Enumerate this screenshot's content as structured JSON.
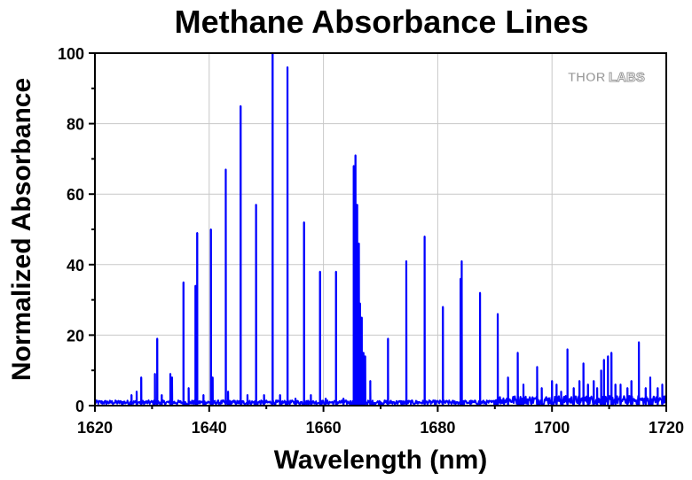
{
  "chart_data": {
    "type": "line",
    "title": "Methane Absorbance Lines",
    "xlabel": "Wavelength (nm)",
    "ylabel": "Normalized Absorbance",
    "xlim": [
      1620,
      1720
    ],
    "ylim": [
      0,
      100
    ],
    "xticks": [
      1620,
      1640,
      1660,
      1680,
      1700,
      1720
    ],
    "yticks": [
      0,
      20,
      40,
      60,
      80,
      100
    ],
    "grid": true,
    "line_color": "#0000ff",
    "baseline_level": 1,
    "series": [
      {
        "peaks": [
          [
            1626.4,
            3
          ],
          [
            1627.3,
            4
          ],
          [
            1628.1,
            8
          ],
          [
            1630.5,
            9
          ],
          [
            1630.9,
            19
          ],
          [
            1631.7,
            3
          ],
          [
            1633.2,
            9
          ],
          [
            1633.5,
            8
          ],
          [
            1635.5,
            35
          ],
          [
            1636.4,
            5
          ],
          [
            1637.6,
            34
          ],
          [
            1637.9,
            49
          ],
          [
            1639.0,
            3
          ],
          [
            1640.3,
            50
          ],
          [
            1640.6,
            8
          ],
          [
            1642.9,
            67
          ],
          [
            1643.3,
            4
          ],
          [
            1645.5,
            85
          ],
          [
            1646.7,
            3
          ],
          [
            1648.2,
            57
          ],
          [
            1649.6,
            3
          ],
          [
            1651.1,
            100
          ],
          [
            1652.4,
            3
          ],
          [
            1653.7,
            96
          ],
          [
            1655.1,
            2
          ],
          [
            1656.6,
            52
          ],
          [
            1657.8,
            3
          ],
          [
            1659.4,
            38
          ],
          [
            1660.4,
            2
          ],
          [
            1662.2,
            38
          ],
          [
            1663.5,
            2
          ],
          [
            1665.3,
            68
          ],
          [
            1665.6,
            71
          ],
          [
            1665.9,
            57
          ],
          [
            1666.2,
            46
          ],
          [
            1666.4,
            29
          ],
          [
            1666.7,
            25
          ],
          [
            1667.0,
            15
          ],
          [
            1667.3,
            14
          ],
          [
            1668.2,
            7
          ],
          [
            1671.3,
            19
          ],
          [
            1674.5,
            41
          ],
          [
            1677.7,
            48
          ],
          [
            1680.9,
            28
          ],
          [
            1684.0,
            36
          ],
          [
            1684.2,
            41
          ],
          [
            1687.4,
            32
          ],
          [
            1690.5,
            26
          ],
          [
            1692.3,
            8
          ],
          [
            1694.0,
            15
          ],
          [
            1695.0,
            6
          ],
          [
            1697.4,
            11
          ],
          [
            1698.2,
            5
          ],
          [
            1700.0,
            7
          ],
          [
            1700.8,
            6
          ],
          [
            1701.6,
            4
          ],
          [
            1702.7,
            16
          ],
          [
            1703.8,
            5
          ],
          [
            1704.8,
            7
          ],
          [
            1705.5,
            12
          ],
          [
            1706.3,
            6
          ],
          [
            1707.3,
            7
          ],
          [
            1707.9,
            5
          ],
          [
            1708.6,
            10
          ],
          [
            1709.1,
            13
          ],
          [
            1709.8,
            14
          ],
          [
            1710.4,
            15
          ],
          [
            1711.1,
            6
          ],
          [
            1712.0,
            6
          ],
          [
            1713.2,
            5
          ],
          [
            1713.9,
            7
          ],
          [
            1715.2,
            18
          ],
          [
            1716.4,
            5
          ],
          [
            1717.2,
            8
          ],
          [
            1718.5,
            5
          ],
          [
            1719.3,
            6
          ]
        ]
      }
    ]
  },
  "watermark": {
    "text_left": "THOR",
    "text_right": "LABS",
    "color": "#9a9a9a"
  }
}
